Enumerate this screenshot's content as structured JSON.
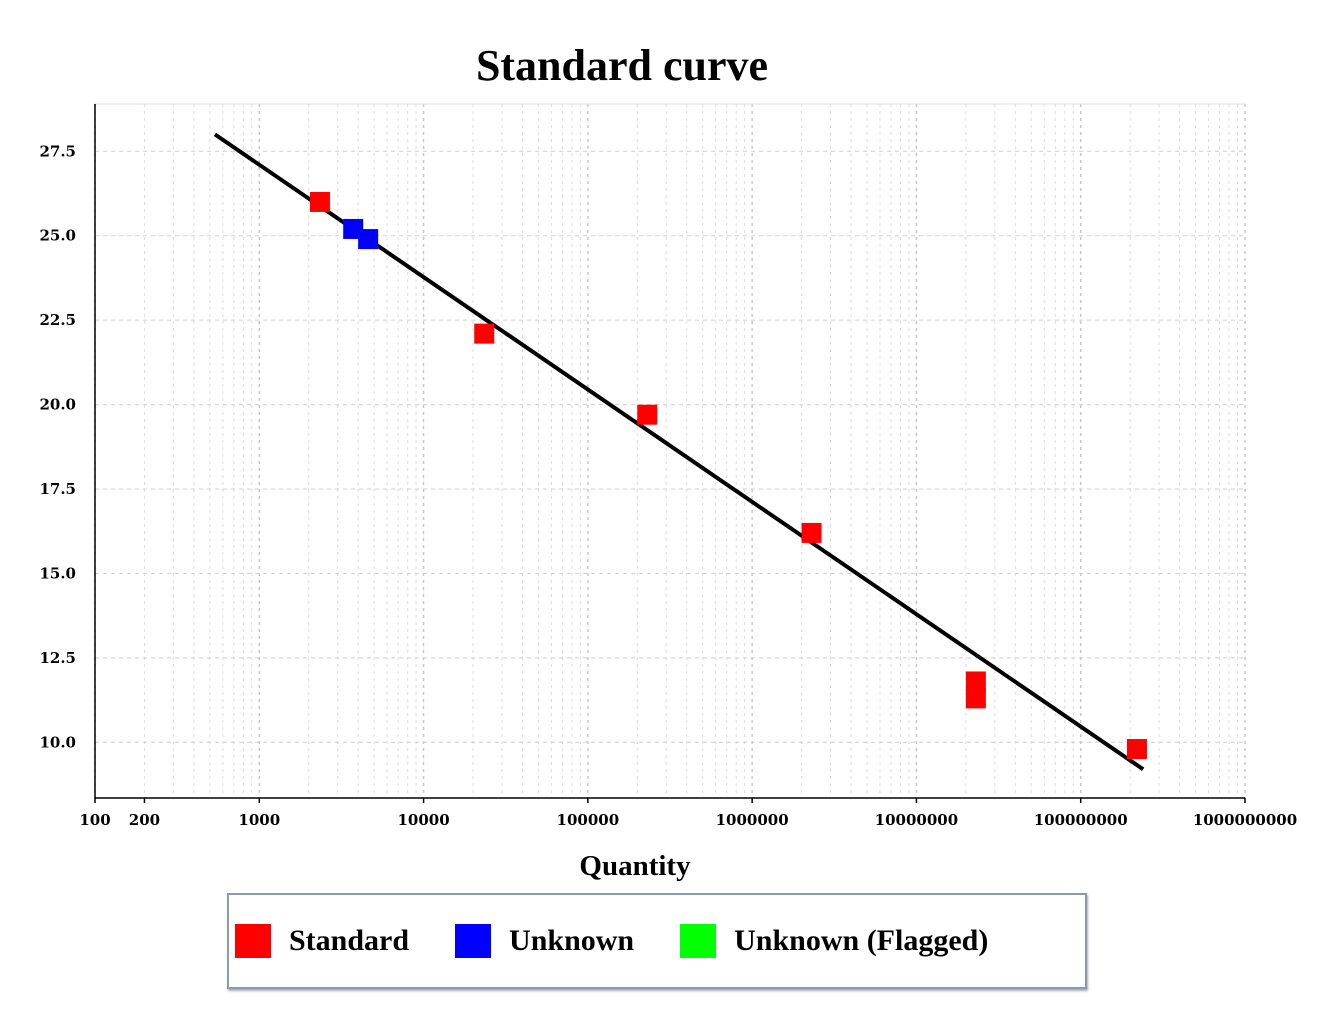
{
  "chart_data": {
    "type": "scatter",
    "title": "Standard curve",
    "xlabel": "Quantity",
    "ylabel": "",
    "xscale": "log",
    "xlim": [
      100,
      1000000000
    ],
    "ylim": [
      8.35,
      28.9
    ],
    "grid": true,
    "xticks": [
      100,
      200,
      1000,
      10000,
      100000,
      1000000,
      10000000,
      100000000,
      1000000000
    ],
    "xtick_labels": [
      "100",
      "200",
      "1000",
      "10000",
      "100000",
      "1000000",
      "10000000",
      "100000000",
      "1000000000"
    ],
    "yticks": [
      27.5,
      25.0,
      22.5,
      20.0,
      17.5,
      15.0,
      12.5,
      10.0
    ],
    "ytick_labels": [
      "27.5",
      "25.0",
      "22.5",
      "20.0",
      "17.5",
      "15.0",
      "12.5",
      "10.0"
    ],
    "series": [
      {
        "name": "Standard",
        "color": "#ff0000",
        "points": [
          [
            2340,
            26.0
          ],
          [
            23400,
            22.1
          ],
          [
            230000,
            19.7
          ],
          [
            2300000,
            16.2
          ],
          [
            23000000,
            11.8
          ],
          [
            23000000,
            11.3
          ],
          [
            220000000,
            9.8
          ]
        ]
      },
      {
        "name": "Unknown",
        "color": "#0000ff",
        "points": [
          [
            3730,
            25.2
          ],
          [
            4600,
            24.9
          ]
        ]
      },
      {
        "name": "Unknown (Flagged)",
        "color": "#00ff00",
        "points": []
      }
    ],
    "fit_line": {
      "color": "#000000",
      "from": [
        537,
        28.0
      ],
      "to": [
        240000000,
        9.2
      ]
    },
    "legend_position": "bottom"
  }
}
